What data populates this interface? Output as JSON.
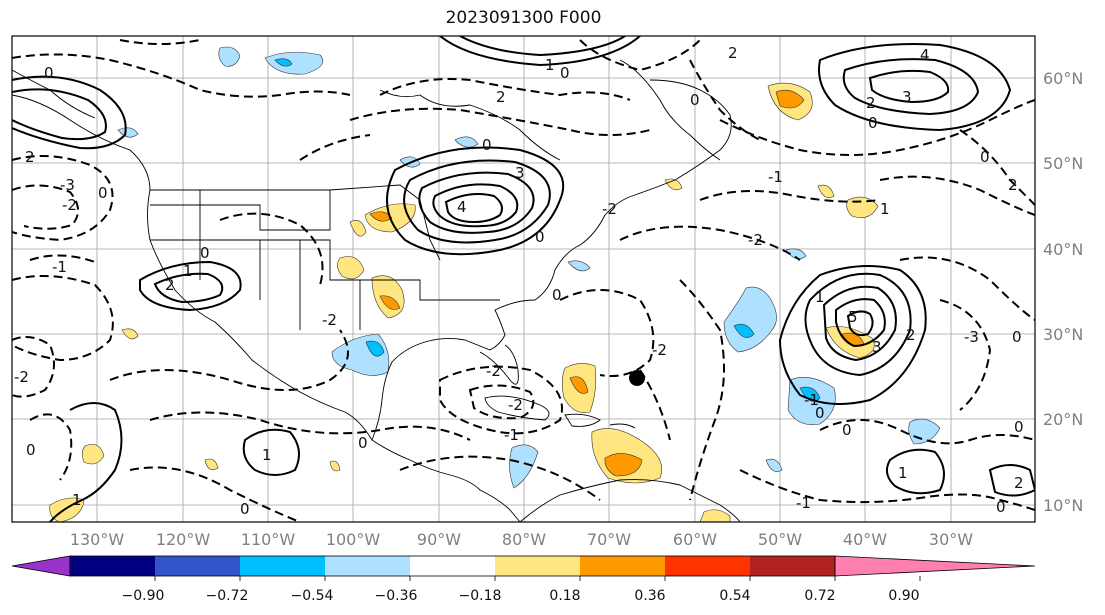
{
  "title": "2023091300 F000",
  "lon_labels": [
    "130°W",
    "120°W",
    "110°W",
    "100°W",
    "90°W",
    "80°W",
    "70°W",
    "60°W",
    "50°W",
    "40°W",
    "30°W"
  ],
  "lat_labels": [
    "60°N",
    "50°N",
    "40°N",
    "30°N",
    "20°N",
    "10°N"
  ],
  "colorbar": {
    "ticks": [
      "−0.90",
      "−0.72",
      "−0.54",
      "−0.36",
      "−0.18",
      "0.18",
      "0.36",
      "0.54",
      "0.72",
      "0.90"
    ],
    "colors": [
      "#9933cc",
      "#000080",
      "#3355cc",
      "#00bfff",
      "#aee0ff",
      "#ffffff",
      "#ffe680",
      "#ff9900",
      "#ff3300",
      "#b22222",
      "#ff80b0"
    ]
  },
  "contour_labels": [
    "0",
    "1",
    "2",
    "3",
    "4",
    "5",
    "-1",
    "-2",
    "-3"
  ],
  "marker": "storm-position"
}
